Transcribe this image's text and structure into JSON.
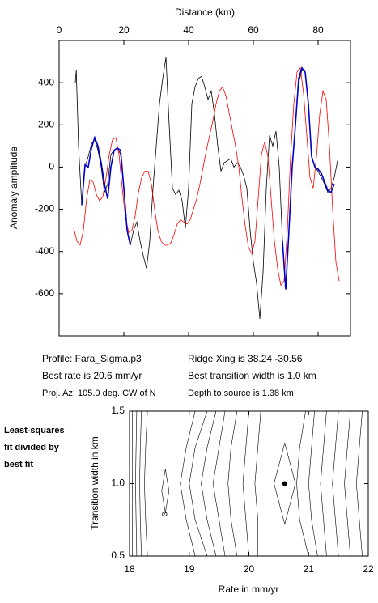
{
  "chart_data": [
    {
      "type": "line",
      "xlabel": "Distance (km)",
      "ylabel": "Anomaly amplitude",
      "xlim": [
        0,
        90
      ],
      "xticks": [
        0,
        20,
        40,
        60,
        80
      ],
      "ylim": [
        -800,
        600
      ],
      "yticks": [
        -600,
        -400,
        -200,
        0,
        200,
        400
      ],
      "series": [
        {
          "color": "#000000",
          "x": [
            5,
            5.3,
            6,
            7,
            8,
            9,
            10,
            11,
            12,
            13,
            14,
            15,
            16,
            17,
            18,
            19,
            20,
            21,
            22,
            23,
            24,
            25,
            26,
            27,
            28,
            29,
            30,
            31,
            32,
            33,
            34,
            35,
            36,
            37,
            38,
            39,
            40,
            41,
            42,
            43,
            44,
            45,
            46,
            47,
            48,
            49,
            50,
            51,
            52,
            53,
            54,
            55,
            56,
            57,
            58,
            59,
            60,
            61,
            62,
            63,
            64,
            65,
            66,
            67,
            68,
            69,
            70,
            71,
            72,
            73,
            74,
            75,
            76,
            77,
            78,
            79,
            80,
            81,
            82,
            83,
            84,
            85,
            86
          ],
          "values": [
            400,
            460,
            100,
            -180,
            0,
            50,
            110,
            130,
            80,
            0,
            -120,
            -80,
            60,
            80,
            90,
            60,
            -100,
            -300,
            -370,
            -300,
            -260,
            -350,
            -420,
            -480,
            -350,
            -100,
            100,
            300,
            420,
            520,
            200,
            -100,
            -130,
            -110,
            -160,
            -290,
            -100,
            300,
            380,
            420,
            430,
            380,
            320,
            360,
            250,
            100,
            -20,
            20,
            30,
            40,
            0,
            20,
            0,
            -40,
            -100,
            -300,
            -450,
            -550,
            -720,
            -500,
            -100,
            150,
            100,
            170,
            0,
            -350,
            -580,
            -300,
            0,
            200,
            400,
            460,
            450,
            300,
            50,
            0,
            -20,
            -50,
            -80,
            -120,
            -100,
            -50,
            30
          ]
        },
        {
          "color": "#ff0000",
          "x": [
            4.5,
            5.5,
            6.5,
            7.5,
            8.5,
            9.5,
            10.5,
            11.5,
            12.5,
            13.5,
            14.5,
            15.5,
            16.5,
            17.5,
            18.5,
            19.5,
            20.5,
            21.5,
            22.5,
            23.5,
            24.5,
            25.5,
            26.5,
            27.5,
            28.5,
            29.5,
            30.5,
            31.5,
            32.5,
            33.5,
            34.5,
            35.5,
            36.5,
            37.5,
            38.5,
            39.5,
            40.5,
            41.5,
            42.5,
            43.5,
            44.5,
            45.5,
            46.5,
            47.5,
            48.5,
            49.5,
            50.5,
            51.5,
            52.5,
            53.5,
            54.5,
            55.5,
            56.5,
            57.5,
            58.5,
            59.5,
            60.5,
            61.5,
            62.5,
            63.5,
            64.5,
            65.5,
            66.5,
            67.5,
            68.5,
            69.5,
            70.5,
            71.5,
            72.5,
            73.5,
            74.5,
            75.5,
            76.5,
            77.5,
            78.5,
            79.5,
            80.5,
            81.5,
            82.5,
            83.5,
            84.5,
            85.5,
            86.5
          ],
          "values": [
            -290,
            -350,
            -370,
            -300,
            -150,
            -60,
            -70,
            -130,
            -160,
            -140,
            -50,
            60,
            130,
            140,
            60,
            -100,
            -240,
            -310,
            -300,
            -230,
            -120,
            -50,
            -20,
            -20,
            -80,
            -200,
            -300,
            -350,
            -370,
            -370,
            -360,
            -320,
            -270,
            -250,
            -260,
            -270,
            -250,
            -200,
            -150,
            -80,
            0,
            80,
            150,
            220,
            300,
            360,
            380,
            340,
            260,
            180,
            100,
            0,
            -150,
            -280,
            -380,
            -410,
            -350,
            -150,
            60,
            120,
            50,
            -150,
            -350,
            -480,
            -560,
            -540,
            -300,
            50,
            300,
            450,
            470,
            350,
            150,
            -50,
            -100,
            50,
            250,
            360,
            320,
            100,
            -200,
            -450,
            -540
          ]
        },
        {
          "color": "#0000cc",
          "x": [
            7,
            8,
            9,
            10,
            11,
            12,
            13,
            14,
            15,
            16,
            17,
            18,
            19,
            20,
            21,
            22,
            null,
            69,
            70,
            71,
            72,
            73,
            74,
            75,
            76,
            77,
            78,
            79,
            80,
            81,
            82,
            83,
            84,
            85
          ],
          "values": [
            -180,
            10,
            0,
            90,
            140,
            100,
            20,
            -80,
            -150,
            0,
            80,
            90,
            80,
            -100,
            -300,
            -370,
            null,
            -350,
            -580,
            -300,
            0,
            200,
            420,
            470,
            450,
            300,
            50,
            0,
            -10,
            -30,
            -70,
            -110,
            -120,
            -80
          ]
        }
      ]
    },
    {
      "type": "contour",
      "xlabel": "Rate in mm/yr",
      "ylabel": "Transition width in km",
      "xlim": [
        18,
        22
      ],
      "xticks": [
        18,
        19,
        20,
        21,
        22
      ],
      "ylim": [
        0.5,
        1.5
      ],
      "yticks": [
        0.5,
        {
          "value": 1.0,
          "label": "1.0"
        },
        1.5
      ],
      "contours": [
        {
          "x": [
            18.05,
            18.05,
            18.05,
            18.05,
            18.05
          ],
          "y": [
            0.5,
            0.75,
            1.0,
            1.25,
            1.5
          ]
        },
        {
          "x": [
            18.12,
            18.11,
            18.1,
            18.11,
            18.12
          ],
          "y": [
            0.5,
            0.75,
            1.0,
            1.25,
            1.5
          ]
        },
        {
          "x": [
            18.2,
            18.18,
            18.17,
            18.18,
            18.2
          ],
          "y": [
            0.5,
            0.75,
            1.0,
            1.25,
            1.5
          ]
        },
        {
          "x": [
            18.3,
            18.27,
            18.25,
            18.27,
            18.3
          ],
          "y": [
            0.5,
            0.75,
            1.0,
            1.25,
            1.5
          ]
        },
        {
          "x": [
            18.6,
            18.66,
            18.6,
            18.54,
            18.6
          ],
          "y": [
            0.8,
            0.95,
            1.1,
            0.95,
            0.8
          ]
        },
        {
          "x": [
            19.1,
            18.95,
            18.85,
            18.95,
            19.1
          ],
          "y": [
            0.5,
            0.75,
            1.0,
            1.25,
            1.5
          ]
        },
        {
          "x": [
            19.3,
            19.1,
            19.0,
            19.1,
            19.3
          ],
          "y": [
            0.5,
            0.75,
            1.0,
            1.25,
            1.5
          ]
        },
        {
          "x": [
            19.45,
            19.3,
            19.2,
            19.3,
            19.45
          ],
          "y": [
            0.5,
            0.75,
            1.0,
            1.25,
            1.5
          ]
        },
        {
          "x": [
            19.6,
            19.5,
            19.4,
            19.5,
            19.6
          ],
          "y": [
            0.5,
            0.75,
            1.0,
            1.25,
            1.5
          ]
        },
        {
          "x": [
            19.8,
            19.7,
            19.65,
            19.7,
            19.8
          ],
          "y": [
            0.5,
            0.75,
            1.0,
            1.25,
            1.5
          ]
        },
        {
          "x": [
            20.0,
            19.95,
            19.9,
            19.95,
            20.0
          ],
          "y": [
            0.5,
            0.75,
            1.0,
            1.25,
            1.5
          ]
        },
        {
          "x": [
            20.15,
            20.15,
            20.1,
            20.15,
            20.2
          ],
          "y": [
            0.5,
            0.75,
            1.0,
            1.25,
            1.5
          ]
        },
        {
          "x": [
            20.6,
            20.78,
            20.6,
            20.42,
            20.6
          ],
          "y": [
            0.72,
            1.0,
            1.28,
            1.0,
            0.72
          ]
        },
        {
          "x": [
            21.0,
            20.85,
            20.8,
            20.85,
            20.95
          ],
          "y": [
            0.5,
            0.75,
            1.0,
            1.25,
            1.5
          ]
        },
        {
          "x": [
            21.15,
            21.05,
            21.0,
            21.05,
            21.1
          ],
          "y": [
            0.5,
            0.75,
            1.0,
            1.25,
            1.5
          ]
        },
        {
          "x": [
            21.3,
            21.25,
            21.2,
            21.25,
            21.3
          ],
          "y": [
            0.5,
            0.75,
            1.0,
            1.25,
            1.5
          ]
        },
        {
          "x": [
            21.5,
            21.45,
            21.4,
            21.45,
            21.5
          ],
          "y": [
            0.5,
            0.75,
            1.0,
            1.25,
            1.5
          ]
        },
        {
          "x": [
            21.7,
            21.65,
            21.6,
            21.65,
            21.7
          ],
          "y": [
            0.5,
            0.75,
            1.0,
            1.25,
            1.5
          ]
        },
        {
          "x": [
            21.9,
            21.85,
            21.8,
            21.85,
            21.9
          ],
          "y": [
            0.5,
            0.75,
            1.0,
            1.25,
            1.5
          ]
        }
      ],
      "best_fit": {
        "x": 20.6,
        "y": 1.0
      },
      "annotations": [
        {
          "text": "3",
          "x": 18.6,
          "y": 0.79
        }
      ]
    }
  ],
  "info": {
    "left": [
      "Profile: Fara_Sigma.p3",
      "Best rate is 20.6 mm/yr",
      "Proj. Az: 105.0 deg. CW of N"
    ],
    "right": [
      "Ridge Xing is 38.24 -30.56",
      "Best transition width is 1.0 km",
      "Depth to source is   1.38 km"
    ],
    "side_note": [
      "Least-squares",
      "fit divided by",
      "best fit"
    ]
  }
}
